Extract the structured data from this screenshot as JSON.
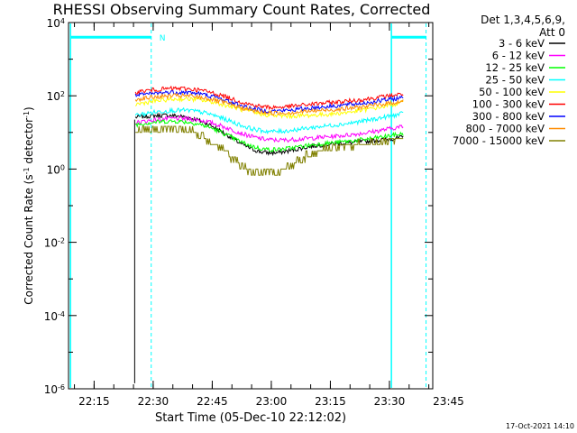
{
  "chart_data": {
    "type": "line",
    "title": "RHESSI Observing Summary Count Rates, Corrected",
    "xlabel": "Start Time (05-Dec-10 22:12:02)",
    "ylabel_main": "Corrected Count Rate (s",
    "ylabel_sup1": "-1",
    "ylabel_mid": " detector",
    "ylabel_sup2": "-1",
    "ylabel_end": ")",
    "yscale": "log",
    "ylim_exp": [
      -6,
      4
    ],
    "y_ticks": [
      {
        "exp": -6,
        "base": "10",
        "sup": "-6"
      },
      {
        "exp": -4,
        "base": "10",
        "sup": "-4"
      },
      {
        "exp": -2,
        "base": "10",
        "sup": "-2"
      },
      {
        "exp": 0,
        "base": "10",
        "sup": "0"
      },
      {
        "exp": 2,
        "base": "10",
        "sup": "2"
      },
      {
        "exp": 4,
        "base": "10",
        "sup": "4"
      }
    ],
    "xlim_min": [
      8.5,
      101
    ],
    "x_ticks": [
      {
        "label": "22:15",
        "min": 15
      },
      {
        "label": "22:30",
        "min": 30
      },
      {
        "label": "22:45",
        "min": 45
      },
      {
        "label": "23:00",
        "min": 60
      },
      {
        "label": "23:15",
        "min": 75
      },
      {
        "label": "23:30",
        "min": 90
      },
      {
        "label": "23:45",
        "min": 105
      }
    ],
    "legend_header": [
      "Det 1,3,4,5,6,9,",
      "Att 0"
    ],
    "legend_position": "right",
    "series": [
      {
        "name": "3 - 6 keV",
        "color": "#000000",
        "start": 1.35,
        "end": 0.8,
        "dip": 0.6
      },
      {
        "name": "6 - 12 keV",
        "color": "#ff00ff",
        "start": 1.2,
        "end": 1.1,
        "dip": 0.3
      },
      {
        "name": "12 - 25 keV",
        "color": "#00ff00",
        "start": 1.15,
        "end": 0.9,
        "dip": 0.45
      },
      {
        "name": "25 - 50 keV",
        "color": "#00ffff",
        "start": 1.4,
        "end": 1.45,
        "dip": 0.35
      },
      {
        "name": "50 - 100 keV",
        "color": "#ffff00",
        "start": 1.7,
        "end": 1.75,
        "dip": 0.2
      },
      {
        "name": "100 - 300 keV",
        "color": "#ff0000",
        "start": 2.05,
        "end": 2.0,
        "dip": 0.3
      },
      {
        "name": "300 - 800 keV",
        "color": "#0000ff",
        "start": 1.95,
        "end": 1.9,
        "dip": 0.3
      },
      {
        "name": "800 - 7000 keV",
        "color": "#ff8c00",
        "start": 1.85,
        "end": 1.8,
        "dip": 0.25
      },
      {
        "name": "7000 - 15000 keV",
        "color": "#808000",
        "start": 1.0,
        "end": 0.75,
        "dip": 1.0
      }
    ],
    "observation_window_min": [
      25.5,
      93.5
    ],
    "spike_min": 25.3,
    "spike_floor_exp": -5.85,
    "night_intervals": [
      {
        "label": "N",
        "start_min": 9,
        "end_min": 29.5,
        "level_exp": 3.6
      },
      {
        "label": "",
        "start_min": 90.5,
        "end_min": 99.3,
        "level_exp": 3.6
      }
    ],
    "solid_markers_min": [
      9,
      90.5
    ],
    "dashed_markers_min": [
      29.5,
      99.3
    ],
    "marker_color": "#00ffff",
    "timestamp": "17-Oct-2021 14:10"
  }
}
